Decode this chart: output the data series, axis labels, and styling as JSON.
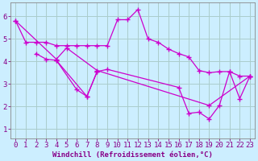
{
  "background_color": "#cceeff",
  "grid_color": "#aacccc",
  "line_color": "#cc00cc",
  "marker": "+",
  "markersize": 4,
  "linewidth": 0.9,
  "markeredgewidth": 1.0,
  "xlabel": "Windchill (Refroidissement éolien,°C)",
  "xlabel_fontsize": 6.5,
  "tick_fontsize": 6.5,
  "ylim": [
    0.6,
    6.6
  ],
  "xlim": [
    -0.5,
    23.5
  ],
  "yticks": [
    1,
    2,
    3,
    4,
    5,
    6
  ],
  "xticks": [
    0,
    1,
    2,
    3,
    4,
    5,
    6,
    7,
    8,
    9,
    10,
    11,
    12,
    13,
    14,
    15,
    16,
    17,
    18,
    19,
    20,
    21,
    22,
    23
  ],
  "series": [
    {
      "x": [
        0,
        1,
        2,
        3,
        4,
        5,
        6,
        7,
        8,
        9,
        10,
        11,
        12,
        13,
        14,
        15,
        16,
        17,
        18,
        19,
        20,
        21,
        22,
        23
      ],
      "y": [
        5.8,
        4.85,
        4.85,
        4.85,
        4.7,
        4.7,
        4.7,
        4.7,
        4.7,
        4.7,
        5.85,
        5.85,
        6.3,
        5.0,
        4.85,
        4.55,
        4.35,
        4.2,
        3.6,
        3.5,
        3.55,
        3.55,
        3.35,
        3.35
      ]
    },
    {
      "x": [
        0,
        4,
        5,
        8,
        19,
        23
      ],
      "y": [
        5.8,
        4.1,
        4.6,
        3.6,
        2.05,
        3.35
      ]
    },
    {
      "x": [
        2,
        3,
        4,
        6,
        7,
        8
      ],
      "y": [
        4.35,
        4.1,
        4.05,
        2.75,
        2.45,
        3.55
      ]
    },
    {
      "x": [
        4,
        7,
        8,
        9,
        16,
        17,
        18,
        19,
        20,
        21,
        22,
        23
      ],
      "y": [
        4.05,
        2.45,
        3.55,
        3.65,
        2.85,
        1.7,
        1.75,
        1.45,
        2.05,
        3.55,
        2.35,
        3.35
      ]
    }
  ]
}
